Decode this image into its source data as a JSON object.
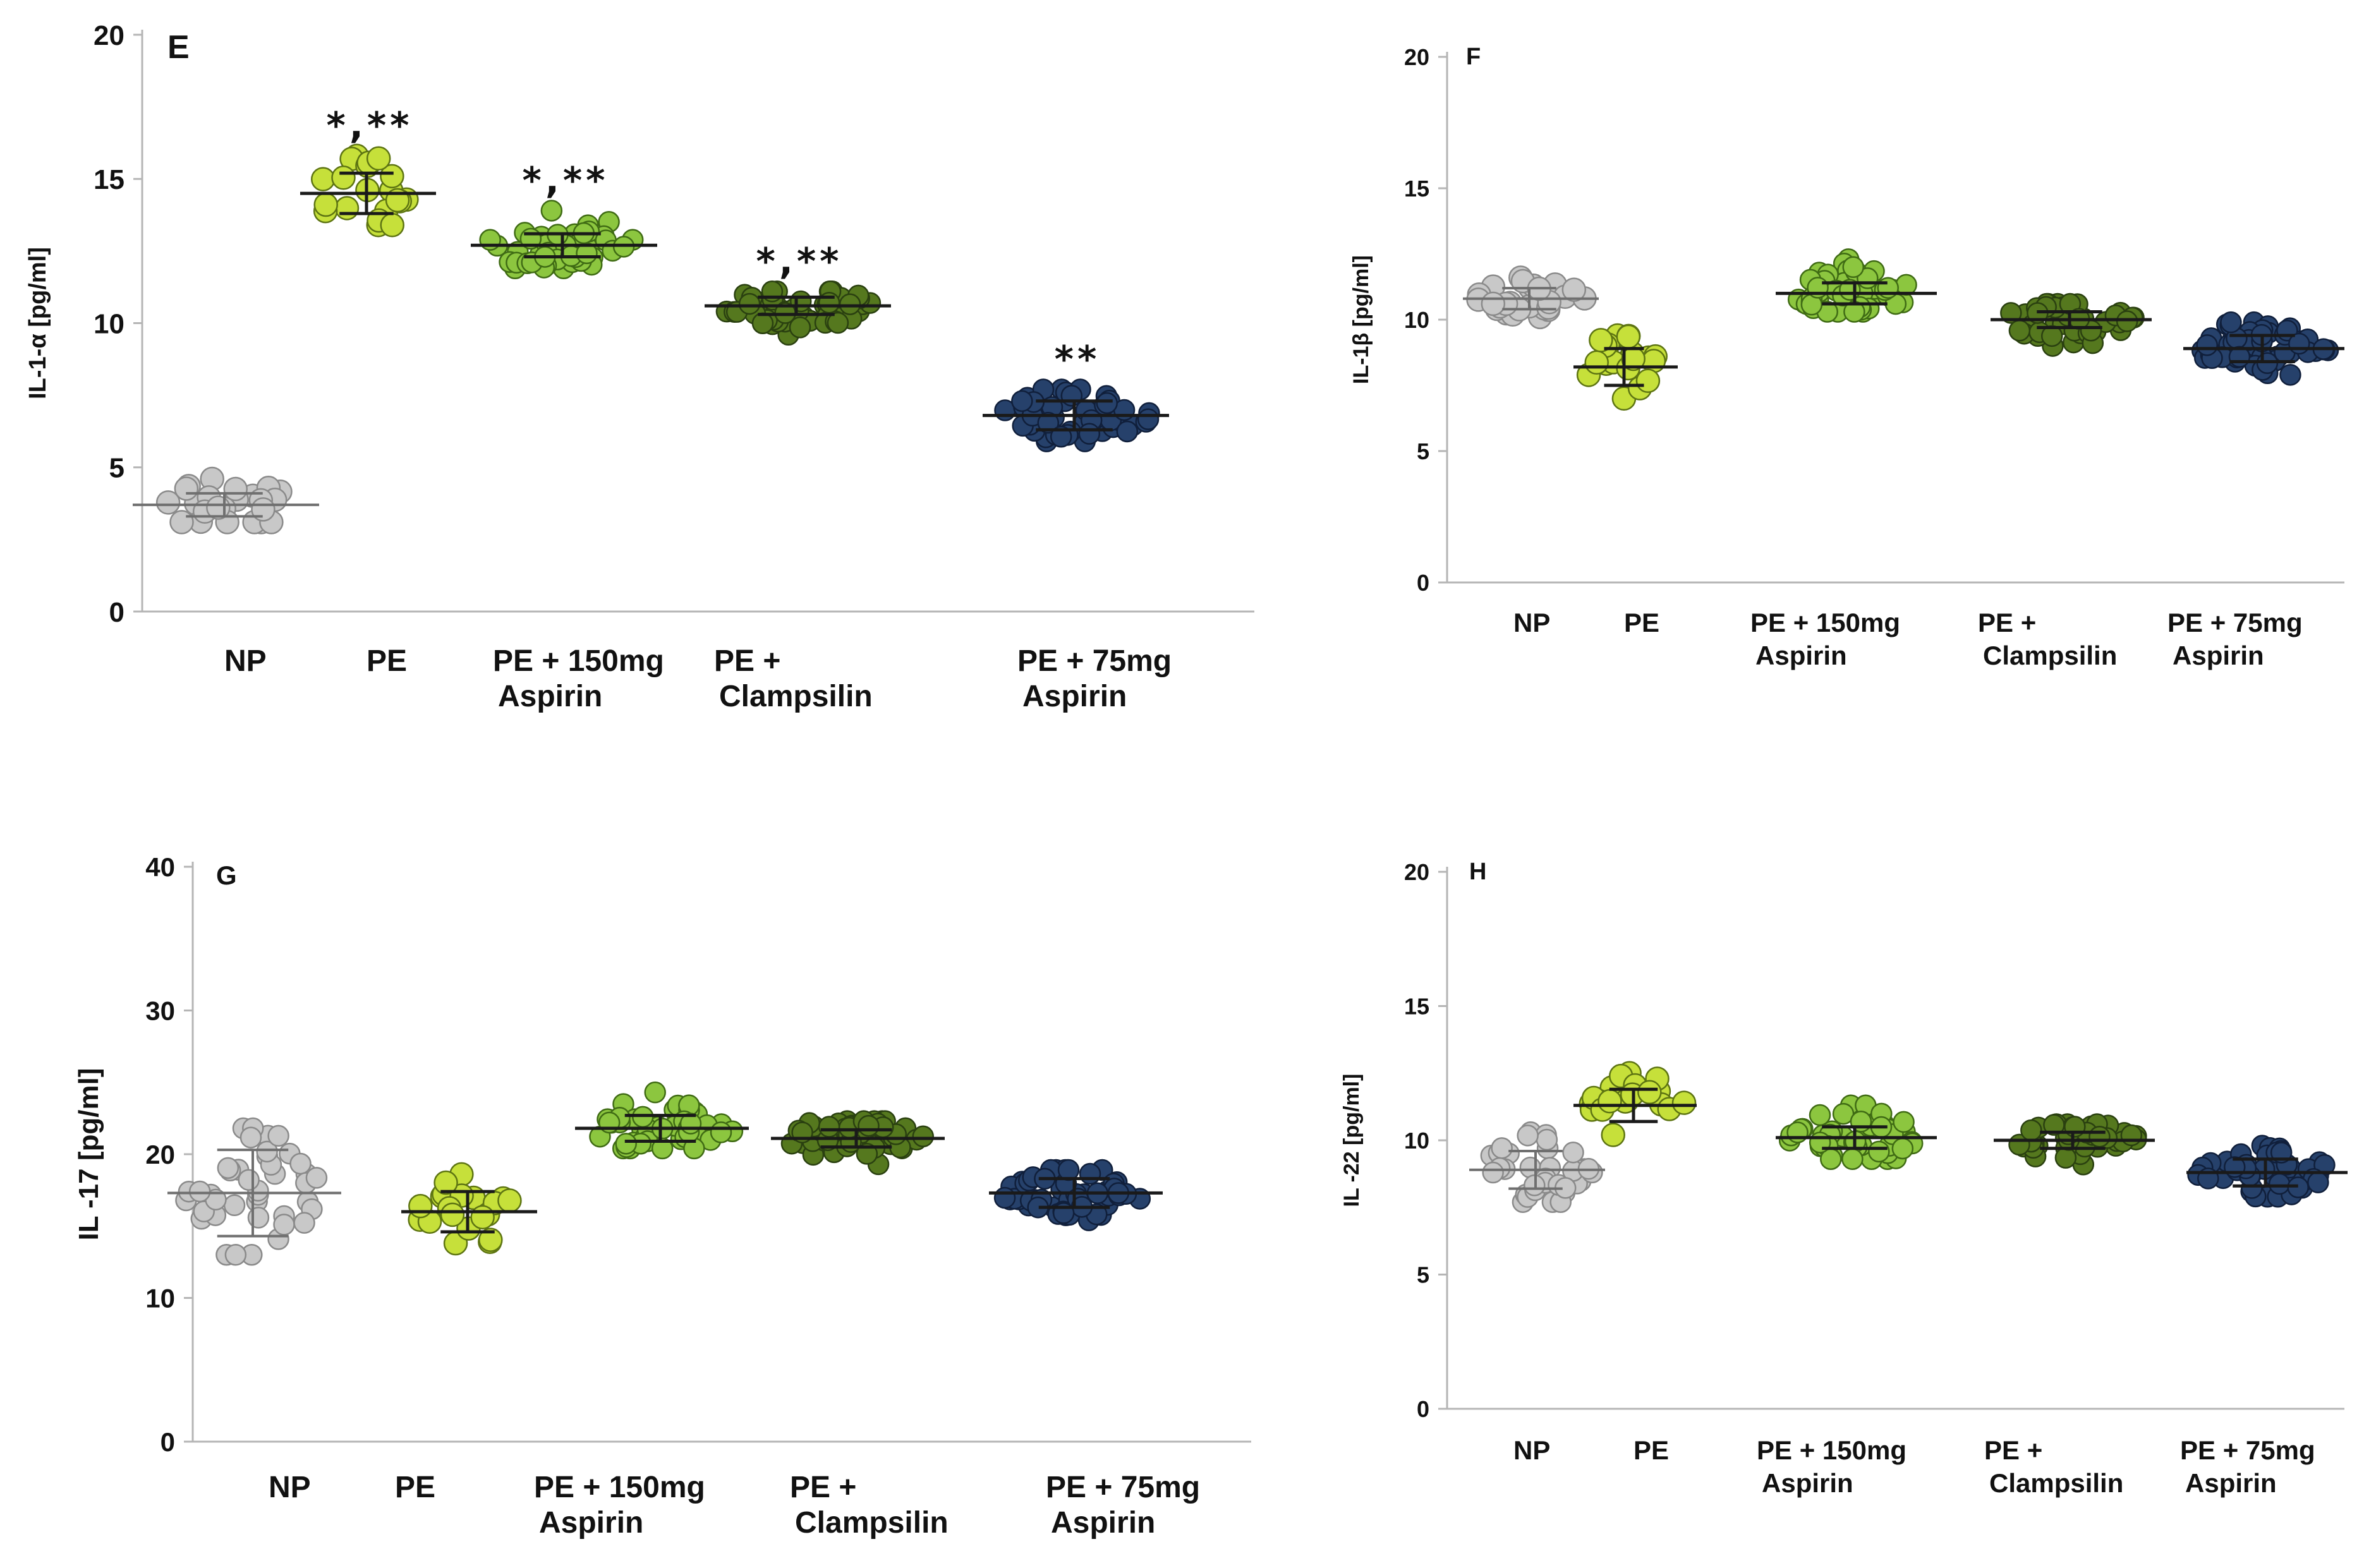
{
  "chart_data": [
    {
      "type": "scatter",
      "panel": "E",
      "ylabel": "IL-1-α [pg/ml]",
      "ylim": [
        0,
        20
      ],
      "yticks": [
        "0",
        "5",
        "10",
        "15",
        "20"
      ],
      "categories": [
        [
          "NP"
        ],
        [
          "PE"
        ],
        [
          "PE + 150mg",
          "Aspirin"
        ],
        [
          "PE +",
          "Clampsilin"
        ],
        [
          "PE + 75mg",
          "Aspirin"
        ]
      ],
      "series": [
        {
          "name": "NP",
          "n": 24,
          "mean": 3.7,
          "sd": 0.4,
          "min": 3.1,
          "max": 4.6,
          "color": "#c8c8c8",
          "stroke": "#8a8a8a",
          "significance": ""
        },
        {
          "name": "PE",
          "n": 20,
          "mean": 14.5,
          "sd": 0.7,
          "min": 13.4,
          "max": 15.8,
          "color": "#c6e03a",
          "stroke": "#5d7412",
          "significance": "*,**"
        },
        {
          "name": "PE + 150mg Aspirin",
          "n": 48,
          "mean": 12.7,
          "sd": 0.4,
          "min": 11.9,
          "max": 13.9,
          "color": "#8cc63f",
          "stroke": "#3f6b14",
          "significance": "*,**"
        },
        {
          "name": "PE + Clampsilin",
          "n": 50,
          "mean": 10.6,
          "sd": 0.3,
          "min": 9.6,
          "max": 11.1,
          "color": "#55781e",
          "stroke": "#2a4010",
          "significance": "*,**"
        },
        {
          "name": "PE + 75mg Aspirin",
          "n": 52,
          "mean": 6.8,
          "sd": 0.5,
          "min": 5.9,
          "max": 7.7,
          "color": "#26416b",
          "stroke": "#101f3b",
          "significance": "**"
        }
      ]
    },
    {
      "type": "scatter",
      "panel": "F",
      "ylabel": "IL-1β [pg/ml]",
      "ylim": [
        0,
        20
      ],
      "yticks": [
        "0",
        "5",
        "10",
        "15",
        "20"
      ],
      "categories": [
        [
          "NP"
        ],
        [
          "PE"
        ],
        [
          "PE + 150mg",
          "Aspirin"
        ],
        [
          "PE +",
          "Clampsilin"
        ],
        [
          "PE + 75mg",
          "Aspirin"
        ]
      ],
      "series": [
        {
          "name": "NP",
          "n": 26,
          "mean": 10.8,
          "sd": 0.4,
          "min": 10.1,
          "max": 11.6,
          "color": "#c8c8c8",
          "stroke": "#8a8a8a",
          "significance": ""
        },
        {
          "name": "PE",
          "n": 20,
          "mean": 8.2,
          "sd": 0.7,
          "min": 7.0,
          "max": 9.4,
          "color": "#c6e03a",
          "stroke": "#5d7412",
          "significance": ""
        },
        {
          "name": "PE + 150mg Aspirin",
          "n": 44,
          "mean": 11.0,
          "sd": 0.4,
          "min": 10.3,
          "max": 12.3,
          "color": "#8cc63f",
          "stroke": "#3f6b14",
          "significance": ""
        },
        {
          "name": "PE + Clampsilin",
          "n": 46,
          "mean": 10.0,
          "sd": 0.3,
          "min": 9.0,
          "max": 10.6,
          "color": "#55781e",
          "stroke": "#2a4010",
          "significance": ""
        },
        {
          "name": "PE + 75mg Aspirin",
          "n": 50,
          "mean": 8.9,
          "sd": 0.5,
          "min": 7.9,
          "max": 9.9,
          "color": "#26416b",
          "stroke": "#101f3b",
          "significance": ""
        }
      ]
    },
    {
      "type": "scatter",
      "panel": "G",
      "ylabel": "IL -17 [pg/ml]",
      "ylim": [
        0,
        40
      ],
      "yticks": [
        "0",
        "10",
        "20",
        "30",
        "40"
      ],
      "categories": [
        [
          "NP"
        ],
        [
          "PE"
        ],
        [
          "PE + 150mg",
          "Aspirin"
        ],
        [
          "PE +",
          "Clampsilin"
        ],
        [
          "PE + 75mg",
          "Aspirin"
        ]
      ],
      "series": [
        {
          "name": "NP",
          "n": 40,
          "mean": 17.3,
          "sd": 3.0,
          "min": 13.0,
          "max": 21.8,
          "color": "#c8c8c8",
          "stroke": "#8a8a8a",
          "significance": ""
        },
        {
          "name": "PE",
          "n": 20,
          "mean": 16.0,
          "sd": 1.4,
          "min": 13.8,
          "max": 18.6,
          "color": "#c6e03a",
          "stroke": "#5d7412",
          "significance": ""
        },
        {
          "name": "PE + 150mg Aspirin",
          "n": 46,
          "mean": 21.8,
          "sd": 0.9,
          "min": 20.4,
          "max": 24.3,
          "color": "#8cc63f",
          "stroke": "#3f6b14",
          "significance": ""
        },
        {
          "name": "PE + Clampsilin",
          "n": 50,
          "mean": 21.1,
          "sd": 0.6,
          "min": 19.3,
          "max": 22.3,
          "color": "#55781e",
          "stroke": "#2a4010",
          "significance": ""
        },
        {
          "name": "PE + 75mg Aspirin",
          "n": 52,
          "mean": 17.3,
          "sd": 1.0,
          "min": 15.4,
          "max": 18.9,
          "color": "#26416b",
          "stroke": "#101f3b",
          "significance": ""
        }
      ]
    },
    {
      "type": "scatter",
      "panel": "H",
      "ylabel": "IL -22 [pg/ml]",
      "ylim": [
        0,
        20
      ],
      "yticks": [
        "0",
        "5",
        "10",
        "15",
        "20"
      ],
      "categories": [
        [
          "NP"
        ],
        [
          "PE"
        ],
        [
          "PE + 150mg",
          "Aspirin"
        ],
        [
          "PE +",
          "Clampsilin"
        ],
        [
          "PE + 75mg",
          "Aspirin"
        ]
      ],
      "series": [
        {
          "name": "NP",
          "n": 36,
          "mean": 8.9,
          "sd": 0.7,
          "min": 7.7,
          "max": 10.3,
          "color": "#c8c8c8",
          "stroke": "#8a8a8a",
          "significance": ""
        },
        {
          "name": "PE",
          "n": 20,
          "mean": 11.3,
          "sd": 0.6,
          "min": 10.2,
          "max": 12.5,
          "color": "#c6e03a",
          "stroke": "#5d7412",
          "significance": ""
        },
        {
          "name": "PE + 150mg Aspirin",
          "n": 46,
          "mean": 10.1,
          "sd": 0.4,
          "min": 9.3,
          "max": 11.3,
          "color": "#8cc63f",
          "stroke": "#3f6b14",
          "significance": ""
        },
        {
          "name": "PE + Clampsilin",
          "n": 46,
          "mean": 10.0,
          "sd": 0.3,
          "min": 9.1,
          "max": 10.6,
          "color": "#55781e",
          "stroke": "#2a4010",
          "significance": ""
        },
        {
          "name": "PE + 75mg Aspirin",
          "n": 50,
          "mean": 8.8,
          "sd": 0.5,
          "min": 7.9,
          "max": 9.8,
          "color": "#26416b",
          "stroke": "#101f3b",
          "significance": ""
        }
      ]
    }
  ]
}
